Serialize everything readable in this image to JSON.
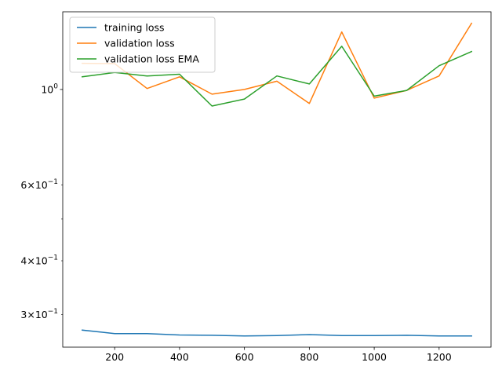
{
  "chart_data": {
    "type": "line",
    "title": "",
    "xlabel": "",
    "ylabel": "",
    "xlim": [
      40,
      1360
    ],
    "ylim": [
      0.252,
      1.515
    ],
    "yscale": "log",
    "grid": false,
    "legend_position": "upper-left",
    "x": [
      100,
      200,
      300,
      400,
      500,
      600,
      700,
      800,
      900,
      1000,
      1100,
      1200,
      1300
    ],
    "series": [
      {
        "name": "training loss",
        "color": "#1f77b4",
        "values": [
          0.276,
          0.271,
          0.271,
          0.269,
          0.2685,
          0.2675,
          0.268,
          0.2695,
          0.268,
          0.268,
          0.2685,
          0.2675,
          0.2675
        ]
      },
      {
        "name": "validation loss",
        "color": "#ff7f0e",
        "values": [
          1.15,
          1.148,
          1.005,
          1.07,
          0.975,
          1.0,
          1.045,
          0.928,
          1.36,
          0.955,
          0.995,
          1.075,
          1.425
        ]
      },
      {
        "name": "validation loss EMA",
        "color": "#2ca02c",
        "values": [
          1.07,
          1.095,
          1.075,
          1.085,
          0.915,
          0.95,
          1.075,
          1.03,
          1.26,
          0.965,
          0.995,
          1.135,
          1.225
        ]
      }
    ],
    "x_ticks": [
      {
        "value": 200,
        "label": "200"
      },
      {
        "value": 400,
        "label": "400"
      },
      {
        "value": 600,
        "label": "600"
      },
      {
        "value": 800,
        "label": "800"
      },
      {
        "value": 1000,
        "label": "1000"
      },
      {
        "value": 1200,
        "label": "1200"
      }
    ],
    "y_major_ticks": [
      {
        "value": 1.0,
        "mantissa": "",
        "exponent": "0"
      }
    ],
    "y_minor_ticks": [
      {
        "value": 0.3,
        "mantissa": "3",
        "exponent": "−1"
      },
      {
        "value": 0.4,
        "mantissa": "4",
        "exponent": "−1"
      },
      {
        "value": 0.5,
        "mantissa": "",
        "exponent": ""
      },
      {
        "value": 0.6,
        "mantissa": "6",
        "exponent": "−1"
      }
    ]
  }
}
